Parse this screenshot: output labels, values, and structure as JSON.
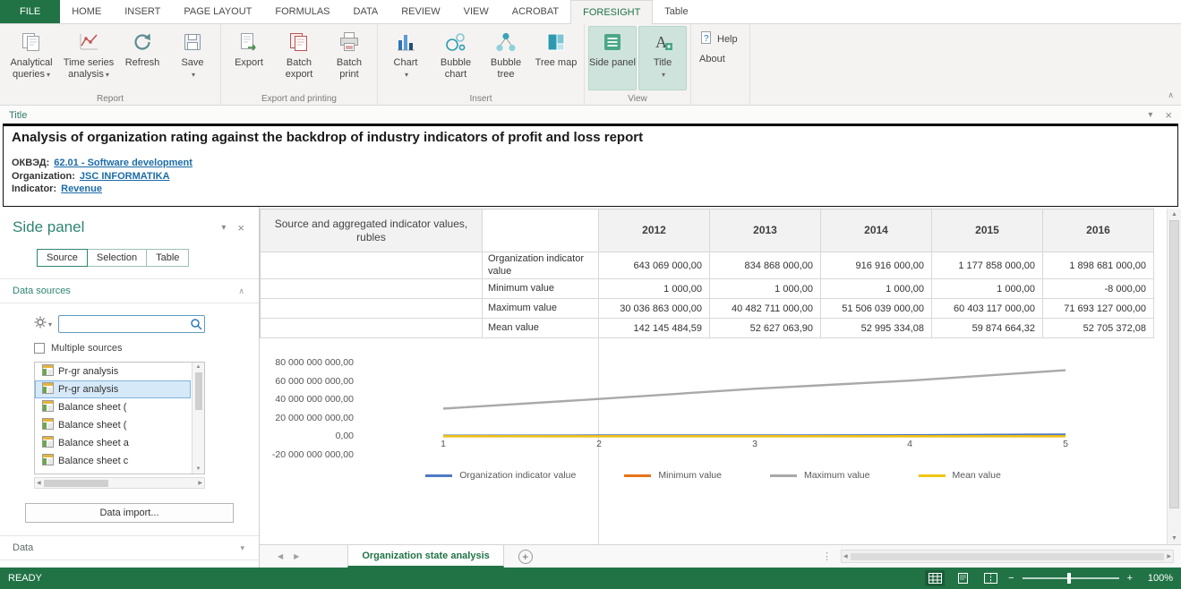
{
  "colors": {
    "accent_green": "#217346",
    "panel_teal": "#2e8573",
    "link_blue": "#1b6ca8",
    "highlight_teal": "#cfe3dd"
  },
  "ribbon_tabs": [
    "FILE",
    "HOME",
    "INSERT",
    "PAGE LAYOUT",
    "FORMULAS",
    "DATA",
    "REVIEW",
    "VIEW",
    "ACROBAT",
    "FORESIGHT",
    "Table"
  ],
  "active_ribbon_tab": "FORESIGHT",
  "ribbon": {
    "groups": [
      {
        "name": "Report",
        "buttons": [
          {
            "label": "Analytical queries",
            "dropdown": true,
            "icon": "analytical-queries-icon"
          },
          {
            "label": "Time series analysis",
            "dropdown": true,
            "icon": "time-series-icon"
          },
          {
            "label": "Refresh",
            "dropdown": false,
            "icon": "refresh-icon"
          },
          {
            "label": "Save",
            "dropdown": true,
            "icon": "save-icon"
          }
        ]
      },
      {
        "name": "Export and printing",
        "buttons": [
          {
            "label": "Export",
            "dropdown": false,
            "icon": "export-icon"
          },
          {
            "label": "Batch export",
            "dropdown": false,
            "icon": "batch-export-icon"
          },
          {
            "label": "Batch print",
            "dropdown": false,
            "icon": "batch-print-icon"
          }
        ]
      },
      {
        "name": "Insert",
        "buttons": [
          {
            "label": "Chart",
            "dropdown": true,
            "icon": "chart-icon"
          },
          {
            "label": "Bubble chart",
            "dropdown": false,
            "icon": "bubble-chart-icon"
          },
          {
            "label": "Bubble tree",
            "dropdown": false,
            "icon": "bubble-tree-icon"
          },
          {
            "label": "Tree map",
            "dropdown": false,
            "icon": "tree-map-icon"
          }
        ]
      },
      {
        "name": "View",
        "buttons": [
          {
            "label": "Side panel",
            "dropdown": false,
            "icon": "side-panel-icon",
            "active": true
          },
          {
            "label": "Title",
            "dropdown": true,
            "icon": "title-icon",
            "active": true
          }
        ]
      },
      {
        "name": "",
        "buttons": [
          {
            "label": "Help",
            "dropdown": false,
            "icon": "help-icon"
          },
          {
            "label": "About",
            "dropdown": false,
            "icon": ""
          }
        ]
      }
    ]
  },
  "title_panel": {
    "bar_label": "Title",
    "heading": "Analysis of organization rating against the backdrop of industry indicators of profit and loss report",
    "fields": [
      {
        "label": "ОКВЭД:",
        "value": "62.01 - Software development"
      },
      {
        "label": "Organization:",
        "value": "JSC INFORMATIKA"
      },
      {
        "label": "Indicator:",
        "value": "Revenue"
      }
    ]
  },
  "side_panel": {
    "title": "Side panel",
    "tabs": [
      "Source",
      "Selection",
      "Table"
    ],
    "active_tab": "Source",
    "data_sources_label": "Data sources",
    "search_value": "",
    "multiple_sources_label": "Multiple sources",
    "list_items": [
      {
        "label": "Pr-gr analysis",
        "selected": false
      },
      {
        "label": "Pr-gr analysis",
        "selected": true
      },
      {
        "label": "Balance sheet (",
        "selected": false
      },
      {
        "label": "Balance sheet (",
        "selected": false
      },
      {
        "label": "Balance sheet a",
        "selected": false
      },
      {
        "label": "Balance sheet c",
        "selected": false
      }
    ],
    "data_import_label": "Data import...",
    "data_label": "Data"
  },
  "table": {
    "corner_header": "Source and aggregated indicator values, rubles",
    "years": [
      "2012",
      "2013",
      "2014",
      "2015",
      "2016"
    ],
    "rows": [
      {
        "label": "Organization indicator value",
        "values": [
          "643 069 000,00",
          "834 868 000,00",
          "916 916 000,00",
          "1 177 858 000,00",
          "1 898 681 000,00"
        ]
      },
      {
        "label": "Minimum value",
        "values": [
          "1 000,00",
          "1 000,00",
          "1 000,00",
          "1 000,00",
          "-8 000,00"
        ]
      },
      {
        "label": "Maximum value",
        "values": [
          "30 036 863 000,00",
          "40 482 711 000,00",
          "51 506 039 000,00",
          "60 403 117 000,00",
          "71 693 127 000,00"
        ]
      },
      {
        "label": "Mean value",
        "values": [
          "142 145 484,59",
          "52 627 063,90",
          "52 995 334,08",
          "59 874 664,32",
          "52 705 372,08"
        ]
      }
    ]
  },
  "chart_data": {
    "type": "line",
    "x": [
      1,
      2,
      3,
      4,
      5
    ],
    "xtick_labels": [
      "1",
      "2",
      "3",
      "4",
      "5"
    ],
    "series": [
      {
        "name": "Organization indicator value",
        "color": "#4e79c4",
        "values": [
          643069000,
          834868000,
          916916000,
          1177858000,
          1898681000
        ]
      },
      {
        "name": "Minimum value",
        "color": "#e8731a",
        "values": [
          1000,
          1000,
          1000,
          1000,
          -8000
        ]
      },
      {
        "name": "Maximum value",
        "color": "#a9a9a9",
        "values": [
          30036863000,
          40482711000,
          51506039000,
          60403117000,
          71693127000
        ]
      },
      {
        "name": "Mean value",
        "color": "#f0c413",
        "values": [
          142145484.59,
          52627063.9,
          52995334.08,
          59874664.32,
          52705372.08
        ]
      }
    ],
    "ylim": [
      -20000000000,
      80000000000
    ],
    "ytick_labels": [
      "80 000 000 000,00",
      "60 000 000 000,00",
      "40 000 000 000,00",
      "20 000 000 000,00",
      "0,00",
      "-20 000 000 000,00"
    ],
    "grid": false,
    "legend_position": "bottom"
  },
  "sheet_bar": {
    "active_sheet": "Organization state analysis"
  },
  "status_bar": {
    "status": "READY",
    "zoom_level": "100%"
  }
}
